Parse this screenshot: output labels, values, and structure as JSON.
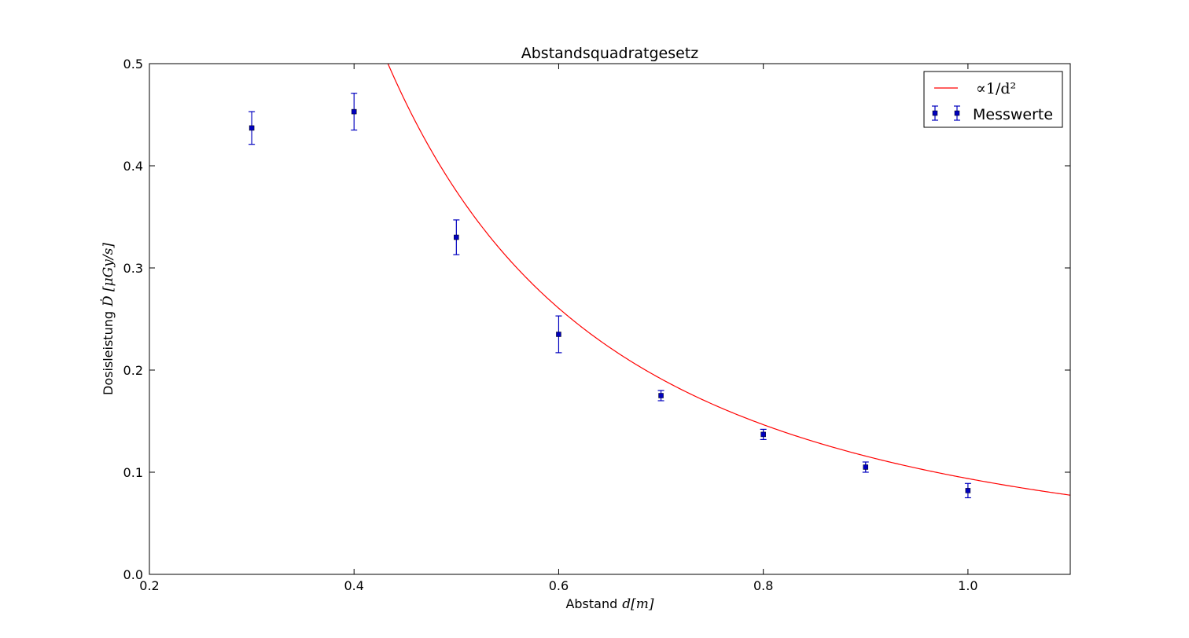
{
  "chart_data": {
    "type": "scatter",
    "title": "Abstandsquadratgesetz",
    "xlabel": {
      "text": "Abstand",
      "math": "d[m]"
    },
    "ylabel": {
      "text": "Dosisleistung",
      "math": "Ḋ [μGy/s]"
    },
    "xlim": [
      0.2,
      1.1
    ],
    "ylim": [
      0.0,
      0.5
    ],
    "xticks": [
      "0.2",
      "0.4",
      "0.6",
      "0.8",
      "1.0"
    ],
    "yticks": [
      "0.0",
      "0.1",
      "0.2",
      "0.3",
      "0.4",
      "0.5"
    ],
    "grid": false,
    "legend_position": "top-right",
    "series": [
      {
        "name": "Messwerte",
        "kind": "errorbar",
        "color": "#0000bf",
        "marker": "square",
        "x": [
          0.3,
          0.4,
          0.5,
          0.6,
          0.7,
          0.8,
          0.9,
          1.0
        ],
        "y": [
          0.437,
          0.453,
          0.33,
          0.235,
          0.175,
          0.137,
          0.105,
          0.082
        ],
        "yerr": [
          0.016,
          0.018,
          0.017,
          0.018,
          0.005,
          0.005,
          0.005,
          0.007
        ]
      },
      {
        "name": "∝1/d²",
        "kind": "fit",
        "formula": "a / d^2",
        "a": 0.0938,
        "color": "#ff0000"
      }
    ]
  }
}
